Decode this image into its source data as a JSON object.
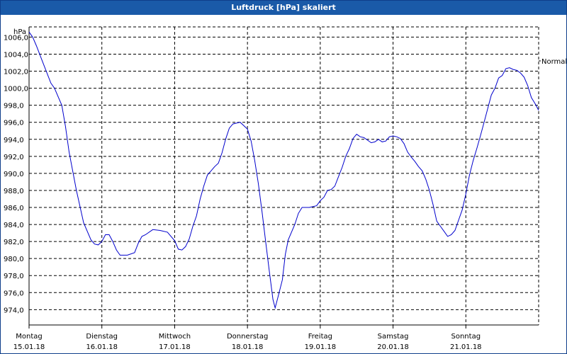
{
  "chart_data": {
    "type": "line",
    "title": "Luftdruck [hPa] skaliert",
    "ylabel": "hPa",
    "ylim": [
      972.2,
      1007.2
    ],
    "yticks": [
      "1006,0",
      "1004,0",
      "1002,0",
      "1000,0",
      "998,0",
      "996,0",
      "994,0",
      "992,0",
      "990,0",
      "988,0",
      "986,0",
      "984,0",
      "982,0",
      "980,0",
      "978,0",
      "976,0",
      "974,0"
    ],
    "grid": true,
    "days": [
      {
        "name": "Montag",
        "date": "15.01.18"
      },
      {
        "name": "Dienstag",
        "date": "16.01.18"
      },
      {
        "name": "Mittwoch",
        "date": "17.01.18"
      },
      {
        "name": "Donnerstag",
        "date": "18.01.18"
      },
      {
        "name": "Freitag",
        "date": "19.01.18"
      },
      {
        "name": "Samstag",
        "date": "20.01.18"
      },
      {
        "name": "Sonntag",
        "date": "21.01.18"
      }
    ],
    "right_label": "Normal",
    "series": [
      {
        "color": "#0000cc",
        "points": [
          [
            0.0,
            1006.6
          ],
          [
            0.05,
            1006.0
          ],
          [
            0.1,
            1005.0
          ],
          [
            0.2,
            1002.8
          ],
          [
            0.3,
            1000.6
          ],
          [
            0.35,
            1000.0
          ],
          [
            0.45,
            998.0
          ],
          [
            0.5,
            995.5
          ],
          [
            0.55,
            992.5
          ],
          [
            0.65,
            988.0
          ],
          [
            0.75,
            984.2
          ],
          [
            0.85,
            982.2
          ],
          [
            0.9,
            981.7
          ],
          [
            0.95,
            981.6
          ],
          [
            1.0,
            982.0
          ],
          [
            1.05,
            982.8
          ],
          [
            1.1,
            982.8
          ],
          [
            1.15,
            982.0
          ],
          [
            1.2,
            981.0
          ],
          [
            1.25,
            980.4
          ],
          [
            1.35,
            980.4
          ],
          [
            1.45,
            980.7
          ],
          [
            1.5,
            981.8
          ],
          [
            1.55,
            982.6
          ],
          [
            1.6,
            982.8
          ],
          [
            1.7,
            983.4
          ],
          [
            1.8,
            983.3
          ],
          [
            1.9,
            983.1
          ],
          [
            2.0,
            982.1
          ],
          [
            2.05,
            981.1
          ],
          [
            2.1,
            981.0
          ],
          [
            2.15,
            981.4
          ],
          [
            2.2,
            982.3
          ],
          [
            2.25,
            983.8
          ],
          [
            2.3,
            985.0
          ],
          [
            2.35,
            987.0
          ],
          [
            2.4,
            988.5
          ],
          [
            2.45,
            989.8
          ],
          [
            2.5,
            990.3
          ],
          [
            2.55,
            990.8
          ],
          [
            2.6,
            991.2
          ],
          [
            2.65,
            992.4
          ],
          [
            2.7,
            994.0
          ],
          [
            2.75,
            995.3
          ],
          [
            2.8,
            995.8
          ],
          [
            2.85,
            995.9
          ],
          [
            2.9,
            996.0
          ],
          [
            2.95,
            995.6
          ],
          [
            3.0,
            995.2
          ],
          [
            3.05,
            993.8
          ],
          [
            3.1,
            991.5
          ],
          [
            3.15,
            988.8
          ],
          [
            3.2,
            985.5
          ],
          [
            3.25,
            982.0
          ],
          [
            3.3,
            978.5
          ],
          [
            3.35,
            975.2
          ],
          [
            3.38,
            974.2
          ],
          [
            3.42,
            975.5
          ],
          [
            3.48,
            977.5
          ],
          [
            3.52,
            980.5
          ],
          [
            3.56,
            982.2
          ],
          [
            3.6,
            983.0
          ],
          [
            3.65,
            984.0
          ],
          [
            3.7,
            985.3
          ],
          [
            3.75,
            986.0
          ],
          [
            3.85,
            986.0
          ],
          [
            3.95,
            986.2
          ],
          [
            4.0,
            986.8
          ],
          [
            4.05,
            987.2
          ],
          [
            4.1,
            988.0
          ],
          [
            4.15,
            988.1
          ],
          [
            4.2,
            988.5
          ],
          [
            4.25,
            989.6
          ],
          [
            4.3,
            990.7
          ],
          [
            4.35,
            992.0
          ],
          [
            4.4,
            992.9
          ],
          [
            4.45,
            994.1
          ],
          [
            4.5,
            994.6
          ],
          [
            4.55,
            994.3
          ],
          [
            4.6,
            994.2
          ],
          [
            4.65,
            993.9
          ],
          [
            4.7,
            993.6
          ],
          [
            4.75,
            993.7
          ],
          [
            4.8,
            994.0
          ],
          [
            4.85,
            993.7
          ],
          [
            4.9,
            993.8
          ],
          [
            4.95,
            994.3
          ],
          [
            5.0,
            994.4
          ],
          [
            5.05,
            994.3
          ],
          [
            5.1,
            994.1
          ],
          [
            5.15,
            993.5
          ],
          [
            5.2,
            992.5
          ],
          [
            5.25,
            991.9
          ],
          [
            5.3,
            991.4
          ],
          [
            5.35,
            990.8
          ],
          [
            5.4,
            990.3
          ],
          [
            5.45,
            989.3
          ],
          [
            5.5,
            988.0
          ],
          [
            5.55,
            986.3
          ],
          [
            5.6,
            984.4
          ],
          [
            5.65,
            983.8
          ],
          [
            5.7,
            983.2
          ],
          [
            5.75,
            982.6
          ],
          [
            5.8,
            982.8
          ],
          [
            5.85,
            983.3
          ],
          [
            5.9,
            984.5
          ],
          [
            5.95,
            985.7
          ],
          [
            6.0,
            987.6
          ],
          [
            6.05,
            989.8
          ],
          [
            6.1,
            991.5
          ],
          [
            6.15,
            992.9
          ],
          [
            6.2,
            994.4
          ],
          [
            6.25,
            996.0
          ],
          [
            6.3,
            997.6
          ],
          [
            6.35,
            999.2
          ],
          [
            6.4,
            1000.0
          ],
          [
            6.45,
            1001.2
          ],
          [
            6.5,
            1001.5
          ],
          [
            6.55,
            1002.3
          ],
          [
            6.6,
            1002.4
          ],
          [
            6.65,
            1002.2
          ],
          [
            6.7,
            1002.1
          ],
          [
            6.75,
            1001.8
          ],
          [
            6.8,
            1001.3
          ],
          [
            6.85,
            1000.3
          ],
          [
            6.9,
            998.9
          ],
          [
            6.95,
            998.2
          ],
          [
            7.0,
            997.4
          ]
        ]
      }
    ]
  }
}
